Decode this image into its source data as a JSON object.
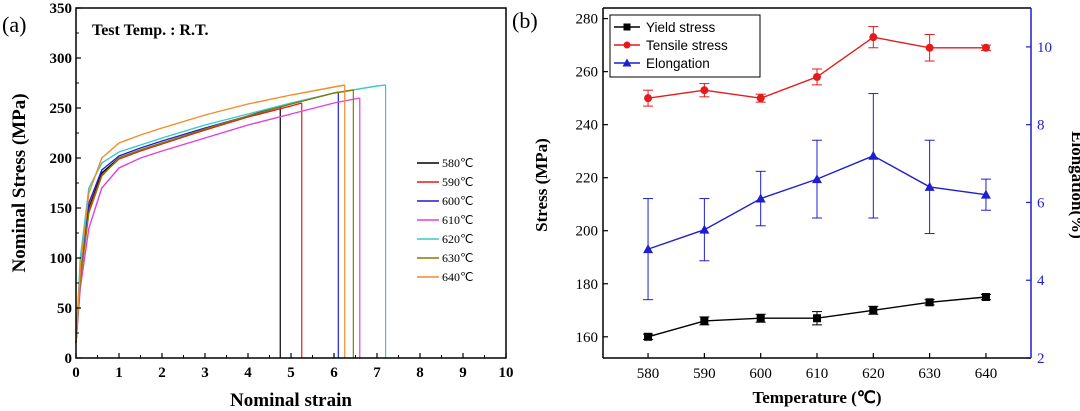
{
  "chart_data": [
    {
      "type": "line",
      "panel_label": "(a)",
      "annotation": "Test Temp. : R.T.",
      "xlabel": "Nominal strain",
      "ylabel": "Nominal Stress (MPa)",
      "xlim": [
        0,
        10
      ],
      "ylim": [
        0,
        350
      ],
      "xticks": [
        0,
        1,
        2,
        3,
        4,
        5,
        6,
        7,
        8,
        9,
        10
      ],
      "yticks": [
        0,
        50,
        100,
        150,
        200,
        250,
        300,
        350
      ],
      "legend_position": "right",
      "series": [
        {
          "name": "580℃",
          "color": "#000000",
          "points": [
            [
              0,
              15
            ],
            [
              0.1,
              80
            ],
            [
              0.3,
              150
            ],
            [
              0.6,
              185
            ],
            [
              1,
              200
            ],
            [
              1.5,
              208
            ],
            [
              2,
              215
            ],
            [
              3,
              228
            ],
            [
              4,
              242
            ],
            [
              4.75,
              252
            ]
          ],
          "fracture_strain": 4.75
        },
        {
          "name": "590℃",
          "color": "#e41a1c",
          "points": [
            [
              0,
              15
            ],
            [
              0.1,
              80
            ],
            [
              0.3,
              148
            ],
            [
              0.6,
              183
            ],
            [
              1,
              199
            ],
            [
              1.5,
              207
            ],
            [
              2,
              214
            ],
            [
              3,
              228
            ],
            [
              4,
              241
            ],
            [
              5,
              252
            ],
            [
              5.25,
              255
            ]
          ],
          "fracture_strain": 5.25
        },
        {
          "name": "600℃",
          "color": "#1f1fd0",
          "points": [
            [
              0,
              15
            ],
            [
              0.1,
              85
            ],
            [
              0.3,
              155
            ],
            [
              0.6,
              188
            ],
            [
              1,
              202
            ],
            [
              1.5,
              210
            ],
            [
              2,
              217
            ],
            [
              3,
              230
            ],
            [
              4,
              242
            ],
            [
              5,
              254
            ],
            [
              6,
              265
            ],
            [
              6.1,
              266
            ]
          ],
          "fracture_strain": 6.1
        },
        {
          "name": "610℃",
          "color": "#e040e0",
          "points": [
            [
              0,
              15
            ],
            [
              0.1,
              70
            ],
            [
              0.3,
              130
            ],
            [
              0.6,
              170
            ],
            [
              1,
              190
            ],
            [
              1.5,
              200
            ],
            [
              2,
              207
            ],
            [
              3,
              220
            ],
            [
              4,
              233
            ],
            [
              5,
              244
            ],
            [
              6,
              255
            ],
            [
              6.6,
              260
            ]
          ],
          "fracture_strain": 6.6
        },
        {
          "name": "620℃",
          "color": "#3cc8c8",
          "points": [
            [
              0,
              15
            ],
            [
              0.1,
              100
            ],
            [
              0.3,
              170
            ],
            [
              0.6,
              195
            ],
            [
              1,
              206
            ],
            [
              1.5,
              213
            ],
            [
              2,
              220
            ],
            [
              3,
              233
            ],
            [
              4,
              244
            ],
            [
              5,
              255
            ],
            [
              6,
              265
            ],
            [
              7,
              272
            ],
            [
              7.2,
              273
            ]
          ],
          "fracture_strain": 7.2
        },
        {
          "name": "630℃",
          "color": "#808000",
          "points": [
            [
              0,
              15
            ],
            [
              0.1,
              78
            ],
            [
              0.3,
              145
            ],
            [
              0.6,
              182
            ],
            [
              1,
              200
            ],
            [
              1.5,
              208
            ],
            [
              2,
              215
            ],
            [
              3,
              229
            ],
            [
              4,
              242
            ],
            [
              5,
              254
            ],
            [
              6,
              265
            ],
            [
              6.45,
              268
            ]
          ],
          "fracture_strain": 6.45
        },
        {
          "name": "640℃",
          "color": "#f28c28",
          "points": [
            [
              0,
              15
            ],
            [
              0.1,
              90
            ],
            [
              0.3,
              165
            ],
            [
              0.6,
              200
            ],
            [
              1,
              215
            ],
            [
              1.5,
              223
            ],
            [
              2,
              230
            ],
            [
              3,
              243
            ],
            [
              4,
              254
            ],
            [
              5,
              263
            ],
            [
              6,
              271
            ],
            [
              6.25,
              273
            ]
          ],
          "fracture_strain": 6.25
        }
      ]
    },
    {
      "type": "line",
      "panel_label": "(b)",
      "xlabel": "Temperature (℃)",
      "ylabel": "Stress (MPa)",
      "y2label": "Elongation(%)",
      "categories": [
        580,
        590,
        600,
        610,
        620,
        630,
        640
      ],
      "xlim": [
        572,
        648
      ],
      "ylim": [
        152,
        284
      ],
      "y2lim": [
        2,
        11
      ],
      "yticks": [
        160,
        180,
        200,
        220,
        240,
        260,
        280
      ],
      "y2ticks": [
        2,
        4,
        6,
        8,
        10
      ],
      "legend_position": "top-left",
      "axis_color": "#1f1fd0",
      "series": [
        {
          "name": "Yield stress",
          "axis": "left",
          "marker": "square",
          "color": "#000000",
          "values": [
            160,
            166,
            167,
            167,
            170,
            173,
            175
          ],
          "errors": [
            1,
            1.5,
            1.5,
            2.5,
            1.5,
            1,
            1
          ]
        },
        {
          "name": "Tensile stress",
          "axis": "left",
          "marker": "circle",
          "color": "#e41a1c",
          "values": [
            250,
            253,
            250,
            258,
            273,
            269,
            269
          ],
          "errors": [
            3,
            2.5,
            1.5,
            3,
            4,
            5,
            1
          ]
        },
        {
          "name": "Elongation",
          "axis": "right",
          "marker": "triangle",
          "color": "#1f1fd0",
          "values": [
            4.8,
            5.3,
            6.1,
            6.6,
            7.2,
            6.4,
            6.2
          ],
          "errors": [
            1.3,
            0.8,
            0.7,
            1.0,
            1.6,
            1.2,
            0.4
          ]
        }
      ]
    }
  ]
}
